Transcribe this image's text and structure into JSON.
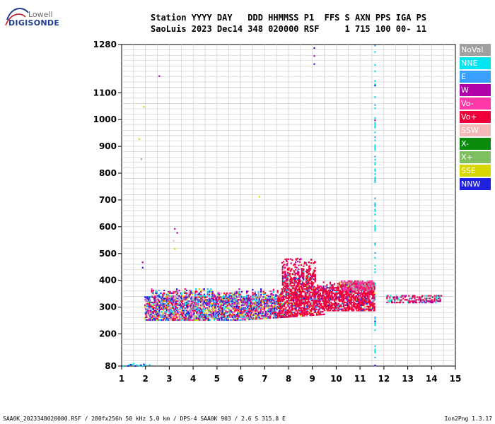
{
  "logo": {
    "line1": "Lowell",
    "line2": "DIGISONDE"
  },
  "header": {
    "line1": "Station YYYY DAY   DDD HHMMSS P1  FFS S AXN PPS IGA PS",
    "line2": "SaoLuis 2023 Dec14 348 020000 RSF     1 715 100 00- 11"
  },
  "legend": [
    {
      "label": "NoVal",
      "color": "#a0a0a0"
    },
    {
      "label": "NNE",
      "color": "#00e5f0"
    },
    {
      "label": "E",
      "color": "#3aa0ff"
    },
    {
      "label": "W",
      "color": "#b000a8"
    },
    {
      "label": "Vo-",
      "color": "#ff3aa8"
    },
    {
      "label": "Vo+",
      "color": "#f0003a"
    },
    {
      "label": "SSW",
      "color": "#f5b8b8"
    },
    {
      "label": "X-",
      "color": "#0a8a0a"
    },
    {
      "label": "X+",
      "color": "#7fbf5f"
    },
    {
      "label": "SSE",
      "color": "#d8d800"
    },
    {
      "label": "NNW",
      "color": "#2020e0"
    }
  ],
  "footer": {
    "left": "SAA0K_2023348020000.RSF / 280fx256h 50 kHz 5.0 km / DPS-4 SAA0K 903 / 2.6 S 315.8 E",
    "right": "Ion2Png 1.3.17"
  },
  "chart_data": {
    "type": "scatter",
    "title": "",
    "xlabel": "",
    "ylabel": "",
    "xlim": [
      1,
      15
    ],
    "ylim": [
      80,
      1280
    ],
    "x_ticks": [
      1,
      2,
      3,
      4,
      5,
      6,
      7,
      8,
      9,
      10,
      11,
      12,
      13,
      14,
      15
    ],
    "y_tick_labels": [
      {
        "value": 80,
        "label": "80"
      },
      {
        "value": 200,
        "label": "200"
      },
      {
        "value": 300,
        "label": "300"
      },
      {
        "value": 400,
        "label": "400"
      },
      {
        "value": 500,
        "label": "500"
      },
      {
        "value": 600,
        "label": "600"
      },
      {
        "value": 700,
        "label": "700"
      },
      {
        "value": 800,
        "label": "800"
      },
      {
        "value": 900,
        "label": "900"
      },
      {
        "value": 1000,
        "label": "1000"
      },
      {
        "value": 1100,
        "label": "1100"
      },
      {
        "value": 1280,
        "label": "1280"
      }
    ],
    "grid": true,
    "series_colors": [
      "#a0a0a0",
      "#00e5f0",
      "#3aa0ff",
      "#b000a8",
      "#ff3aa8",
      "#f0003a",
      "#f5b8b8",
      "#0a8a0a",
      "#7fbf5f",
      "#d8d800",
      "#2020e0"
    ],
    "echo_regions": [
      {
        "name": "F-layer trace",
        "x_range": [
          1.95,
          11.6
        ],
        "y_range": [
          255,
          400
        ]
      },
      {
        "name": "F-layer spread",
        "x_range": [
          7.7,
          9.1
        ],
        "y_range": [
          380,
          480
        ]
      },
      {
        "name": "Upper spread",
        "x_range": [
          6.8,
          11.5
        ],
        "y_range": [
          370,
          420
        ]
      },
      {
        "name": "Tail",
        "x_range": [
          12.1,
          14.4
        ],
        "y_range": [
          320,
          345
        ]
      },
      {
        "name": "Low echoes",
        "x_range": [
          1.0,
          2.15
        ],
        "y_range": [
          82,
          95
        ]
      }
    ],
    "isolated_points": [
      {
        "x": 1.7,
        "y": 930,
        "color": "#d8d800"
      },
      {
        "x": 1.8,
        "y": 855,
        "color": "#a0a0a0"
      },
      {
        "x": 1.9,
        "y": 1050,
        "color": "#d8d800"
      },
      {
        "x": 2.55,
        "y": 1165,
        "color": "#b000a8"
      },
      {
        "x": 1.85,
        "y": 470,
        "color": "#b000a8"
      },
      {
        "x": 1.85,
        "y": 450,
        "color": "#2020e0"
      },
      {
        "x": 3.2,
        "y": 595,
        "color": "#b000a8"
      },
      {
        "x": 3.3,
        "y": 580,
        "color": "#b000a8"
      },
      {
        "x": 3.15,
        "y": 550,
        "color": "#f5b8b8"
      },
      {
        "x": 3.2,
        "y": 520,
        "color": "#d8d800"
      },
      {
        "x": 6.75,
        "y": 715,
        "color": "#d8d800"
      },
      {
        "x": 9.05,
        "y": 1270,
        "color": "#2020e0"
      },
      {
        "x": 9.05,
        "y": 1240,
        "color": "#b000a8"
      },
      {
        "x": 9.05,
        "y": 1210,
        "color": "#2020e0"
      },
      {
        "x": 11.6,
        "y": 1000,
        "color": "#b000a8"
      },
      {
        "x": 11.6,
        "y": 1130,
        "color": "#2020e0"
      },
      {
        "x": 11.6,
        "y": 250,
        "color": "#2020e0"
      },
      {
        "x": 11.6,
        "y": 85,
        "color": "#2020e0"
      }
    ],
    "vertical_trace": {
      "x": 11.6,
      "y_range": [
        85,
        1280
      ],
      "color": "#00e5f0"
    }
  }
}
